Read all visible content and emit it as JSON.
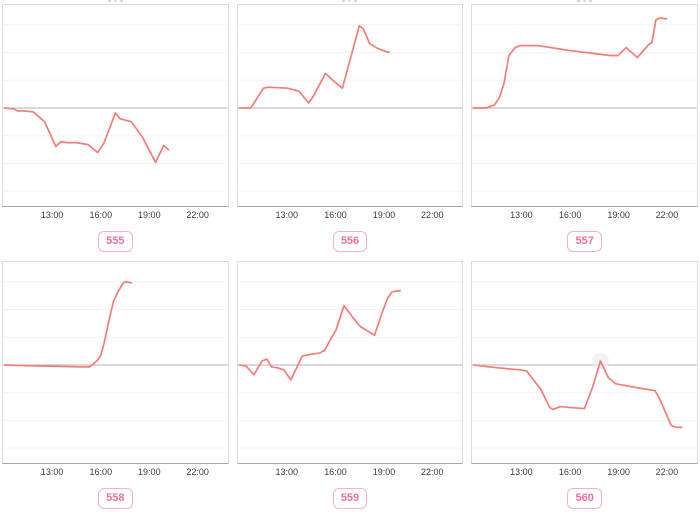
{
  "colors": {
    "line": "#f87a76",
    "baseline": "#b3b3b3",
    "grid": "#f3f3f3",
    "panel_border": "#dcdcdc",
    "axis_line": "#a8a8a8",
    "badge_border": "#f8b0c6",
    "badge_text": "#ee6f9e",
    "tick_text": "#3a3a3a",
    "hover_halo": "#ececec"
  },
  "chart_data": [
    {
      "type": "line",
      "id": "555",
      "badge_label": "555",
      "x_ticks": [
        "13:00",
        "16:00",
        "19:00",
        "22:00"
      ],
      "x_range_hours": [
        10,
        24
      ],
      "baseline_value": 0,
      "points": [
        [
          10.0,
          0
        ],
        [
          10.6,
          -1
        ],
        [
          10.8,
          -3
        ],
        [
          11.2,
          -3
        ],
        [
          11.8,
          -4
        ],
        [
          12.5,
          -14
        ],
        [
          13.2,
          -39
        ],
        [
          13.5,
          -34
        ],
        [
          13.9,
          -35
        ],
        [
          14.5,
          -35
        ],
        [
          15.2,
          -37
        ],
        [
          15.8,
          -45
        ],
        [
          16.2,
          -35
        ],
        [
          16.9,
          -5
        ],
        [
          17.2,
          -11
        ],
        [
          17.9,
          -14
        ],
        [
          18.6,
          -30
        ],
        [
          19.4,
          -55
        ],
        [
          19.9,
          -38
        ],
        [
          20.2,
          -42
        ]
      ]
    },
    {
      "type": "line",
      "id": "556",
      "badge_label": "556",
      "x_ticks": [
        "13:00",
        "16:00",
        "19:00",
        "22:00"
      ],
      "x_range_hours": [
        10,
        24
      ],
      "baseline_value": 0,
      "points": [
        [
          10.0,
          0
        ],
        [
          10.7,
          0
        ],
        [
          11.5,
          20
        ],
        [
          11.8,
          21
        ],
        [
          13.0,
          20
        ],
        [
          13.7,
          17
        ],
        [
          14.3,
          5
        ],
        [
          14.6,
          12
        ],
        [
          15.35,
          35
        ],
        [
          15.8,
          28
        ],
        [
          16.4,
          20
        ],
        [
          17.45,
          83
        ],
        [
          17.7,
          80
        ],
        [
          18.1,
          65
        ],
        [
          18.6,
          60
        ],
        [
          19.3,
          56
        ]
      ]
    },
    {
      "type": "line",
      "id": "557",
      "badge_label": "557",
      "x_ticks": [
        "13:00",
        "16:00",
        "19:00",
        "22:00"
      ],
      "x_range_hours": [
        10,
        24
      ],
      "baseline_value": 0,
      "points": [
        [
          10.0,
          0
        ],
        [
          10.8,
          0
        ],
        [
          11.3,
          3
        ],
        [
          11.6,
          10
        ],
        [
          11.9,
          25
        ],
        [
          12.2,
          53
        ],
        [
          12.6,
          61
        ],
        [
          12.9,
          63
        ],
        [
          14.0,
          63
        ],
        [
          16.0,
          58
        ],
        [
          18.5,
          53
        ],
        [
          19.0,
          53
        ],
        [
          19.5,
          61
        ],
        [
          20.2,
          51
        ],
        [
          20.9,
          64
        ],
        [
          21.1,
          66
        ],
        [
          21.35,
          89
        ],
        [
          21.6,
          91
        ],
        [
          22.0,
          90
        ]
      ]
    },
    {
      "type": "line",
      "id": "558",
      "badge_label": "558",
      "x_ticks": [
        "13:00",
        "16:00",
        "19:00",
        "22:00"
      ],
      "x_range_hours": [
        10,
        24
      ],
      "baseline_value": 0,
      "points": [
        [
          10.0,
          0
        ],
        [
          12.0,
          -1
        ],
        [
          14.9,
          -2
        ],
        [
          15.3,
          -2
        ],
        [
          15.6,
          2
        ],
        [
          15.8,
          5
        ],
        [
          16.0,
          10
        ],
        [
          16.2,
          22
        ],
        [
          16.5,
          45
        ],
        [
          16.8,
          65
        ],
        [
          17.1,
          75
        ],
        [
          17.4,
          83
        ],
        [
          17.55,
          84
        ],
        [
          17.9,
          83
        ]
      ]
    },
    {
      "type": "line",
      "id": "559",
      "badge_label": "559",
      "x_ticks": [
        "13:00",
        "16:00",
        "19:00",
        "22:00"
      ],
      "x_range_hours": [
        10,
        24
      ],
      "baseline_value": 0,
      "points": [
        [
          10.0,
          0
        ],
        [
          10.4,
          -1
        ],
        [
          10.9,
          -10
        ],
        [
          11.4,
          4
        ],
        [
          11.7,
          6
        ],
        [
          12.0,
          -2
        ],
        [
          12.4,
          -3
        ],
        [
          12.75,
          -5
        ],
        [
          13.2,
          -15
        ],
        [
          13.9,
          9
        ],
        [
          14.5,
          11
        ],
        [
          15.0,
          12
        ],
        [
          15.3,
          15
        ],
        [
          15.7,
          27
        ],
        [
          16.0,
          35
        ],
        [
          16.5,
          60
        ],
        [
          17.1,
          47
        ],
        [
          17.5,
          39
        ],
        [
          17.9,
          35
        ],
        [
          18.4,
          30
        ],
        [
          18.9,
          54
        ],
        [
          19.2,
          67
        ],
        [
          19.5,
          74
        ],
        [
          20.0,
          75
        ]
      ]
    },
    {
      "type": "line",
      "id": "560",
      "badge_label": "560",
      "x_ticks": [
        "13:00",
        "16:00",
        "19:00",
        "22:00"
      ],
      "x_range_hours": [
        10,
        24
      ],
      "baseline_value": 0,
      "hover_marker": [
        17.9,
        4
      ],
      "points": [
        [
          10.0,
          0
        ],
        [
          11.0,
          -2
        ],
        [
          12.9,
          -5
        ],
        [
          13.3,
          -6
        ],
        [
          14.2,
          -25
        ],
        [
          14.75,
          -43
        ],
        [
          14.95,
          -45
        ],
        [
          15.4,
          -42
        ],
        [
          16.0,
          -43
        ],
        [
          16.9,
          -44
        ],
        [
          17.4,
          -23
        ],
        [
          17.9,
          4
        ],
        [
          18.4,
          -13
        ],
        [
          18.85,
          -19
        ],
        [
          20.2,
          -23
        ],
        [
          21.3,
          -26
        ],
        [
          21.6,
          -35
        ],
        [
          22.3,
          -61
        ],
        [
          22.6,
          -63
        ],
        [
          22.95,
          -63
        ]
      ]
    }
  ]
}
